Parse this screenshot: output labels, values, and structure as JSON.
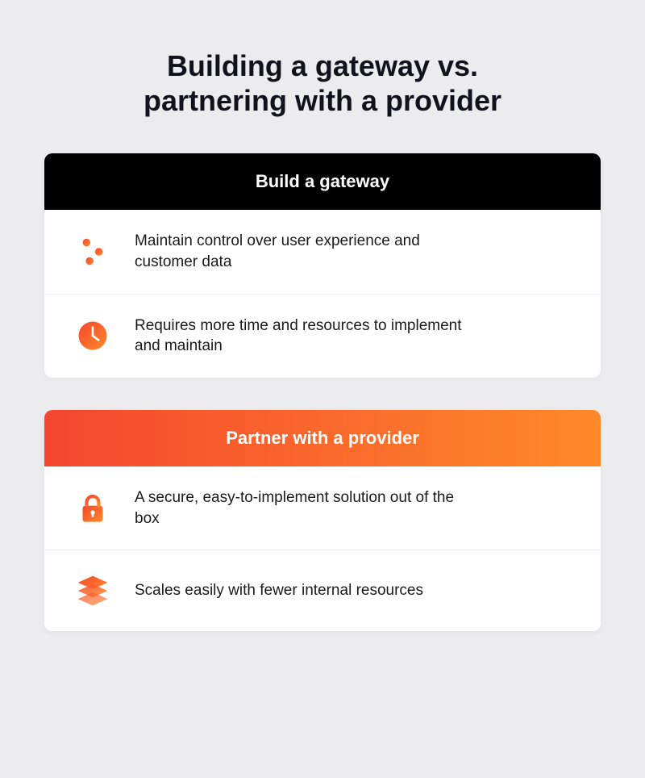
{
  "type": "infographic",
  "background_color": "#ececee",
  "title": {
    "line1": "Building a gateway vs.",
    "line2": "partnering with a provider",
    "fontsize": 36,
    "color": "#12121c",
    "weight": 700
  },
  "icon_gradient": {
    "from": "#f4462e",
    "to": "#ff8a2a"
  },
  "cards": [
    {
      "header": {
        "label": "Build a gateway",
        "bg_solid": "#000000",
        "text_color": "#ffffff",
        "fontsize": 22
      },
      "body_bg": "#ffffff",
      "divider_color": "#ececee",
      "rows": [
        {
          "icon": "sliders",
          "text": "Maintain control over user experience and customer data"
        },
        {
          "icon": "clock",
          "text": "Requires more time and resources to implement and maintain"
        }
      ],
      "row_fontsize": 19,
      "row_text_color": "#1a1a1a"
    },
    {
      "header": {
        "label": "Partner with a provider",
        "gradient_from": "#f4462e",
        "gradient_to": "#ff8a2a",
        "text_color": "#ffffff",
        "fontsize": 22
      },
      "body_bg": "#ffffff",
      "divider_color": "#ececee",
      "rows": [
        {
          "icon": "lock",
          "text": "A secure, easy-to-implement solution out of the box"
        },
        {
          "icon": "layers",
          "text": "Scales easily with fewer internal resources"
        }
      ],
      "row_fontsize": 19,
      "row_text_color": "#1a1a1a"
    }
  ]
}
